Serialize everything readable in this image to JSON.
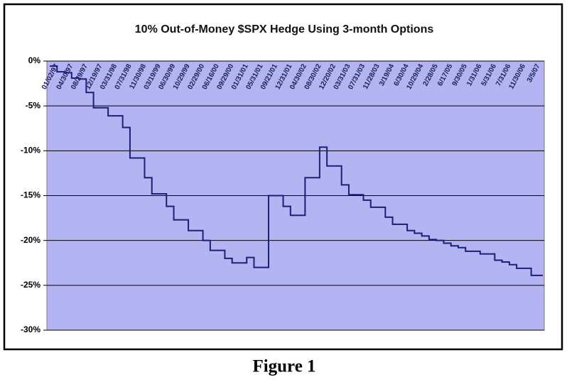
{
  "chart_data": {
    "type": "line",
    "title": "10% Out-of-Money $SPX Hedge Using 3-month Options",
    "categories": [
      "01/02/97",
      null,
      "04/30/97",
      null,
      "08/29/97",
      null,
      "12/19/97",
      null,
      "03/31/98",
      null,
      "07/31/98",
      null,
      "11/30/98",
      null,
      "03/19/99",
      null,
      "06/30/99",
      null,
      "10/29/99",
      null,
      "02/29/00",
      null,
      "06/16/00",
      null,
      "09/29/00",
      null,
      "01/31/01",
      null,
      "05/31/01",
      null,
      "09/21/01",
      null,
      "12/31/01",
      null,
      "04/30/02",
      null,
      "08/30/02",
      null,
      "12/20/02",
      null,
      "03/31/03",
      null,
      "07/31/03",
      null,
      "11/28/03",
      null,
      "3/19/04",
      null,
      "6/30/04",
      null,
      "10/29/04",
      null,
      "2/28/05",
      null,
      "6/17/05",
      null,
      "9/30/05",
      null,
      "1/31/06",
      null,
      "5/31/06",
      null,
      "7/31/06",
      null,
      "11/30/06",
      null,
      "3/5/07",
      null
    ],
    "series": [
      {
        "color": "#1a1f7a",
        "values": [
          -0.55,
          -1.2,
          -1.3,
          -1.9,
          -2.0,
          -3.5,
          -5.2,
          -5.2,
          -6.1,
          -6.1,
          -7.4,
          -10.8,
          -10.8,
          -13.0,
          -14.8,
          -14.8,
          -16.2,
          -17.7,
          -17.7,
          -18.9,
          -18.9,
          -20.0,
          -21.1,
          -21.1,
          -22.0,
          -22.5,
          -22.5,
          -21.9,
          -23.0,
          -23.0,
          -15.0,
          -15.0,
          -16.2,
          -17.2,
          -17.2,
          -13.0,
          -13.0,
          -9.6,
          -11.7,
          -11.7,
          -13.8,
          -14.9,
          -14.9,
          -15.5,
          -16.3,
          -16.3,
          -17.4,
          -18.2,
          -18.2,
          -18.9,
          -19.2,
          -19.5,
          -19.9,
          -20.0,
          -20.3,
          -20.6,
          -20.8,
          -21.2,
          -21.2,
          -21.5,
          -21.5,
          -22.2,
          -22.4,
          -22.7,
          -23.1,
          -23.1,
          -23.9,
          -23.9
        ]
      }
    ],
    "ylim": [
      -30,
      0
    ],
    "yticks": [
      {
        "value": 0,
        "label": "0%"
      },
      {
        "value": -5,
        "label": "-5%"
      },
      {
        "value": -10,
        "label": "-10%"
      },
      {
        "value": -15,
        "label": "-15%"
      },
      {
        "value": -20,
        "label": "-20%"
      },
      {
        "value": -25,
        "label": "-25%"
      },
      {
        "value": -30,
        "label": "-30%"
      }
    ],
    "grid": true,
    "background": "#b4b4f2"
  },
  "caption": "Figure 1"
}
